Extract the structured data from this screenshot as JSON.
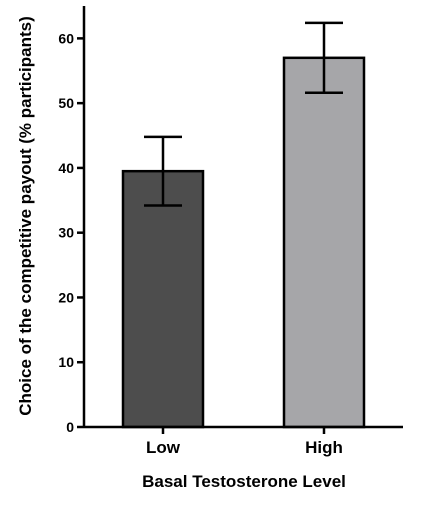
{
  "chart_data": {
    "type": "bar",
    "categories": [
      "Low",
      "High"
    ],
    "values": [
      39.5,
      57
    ],
    "error": [
      5.3,
      5.4
    ],
    "colors": [
      "#4d4d4d",
      "#a6a6a9"
    ],
    "xlabel": "Basal Testosterone Level",
    "ylabel": "Choice of the competitive payout (% participants)",
    "ylim": [
      0,
      65
    ],
    "yticks": [
      0,
      10,
      20,
      30,
      40,
      50,
      60
    ],
    "grid": false
  }
}
